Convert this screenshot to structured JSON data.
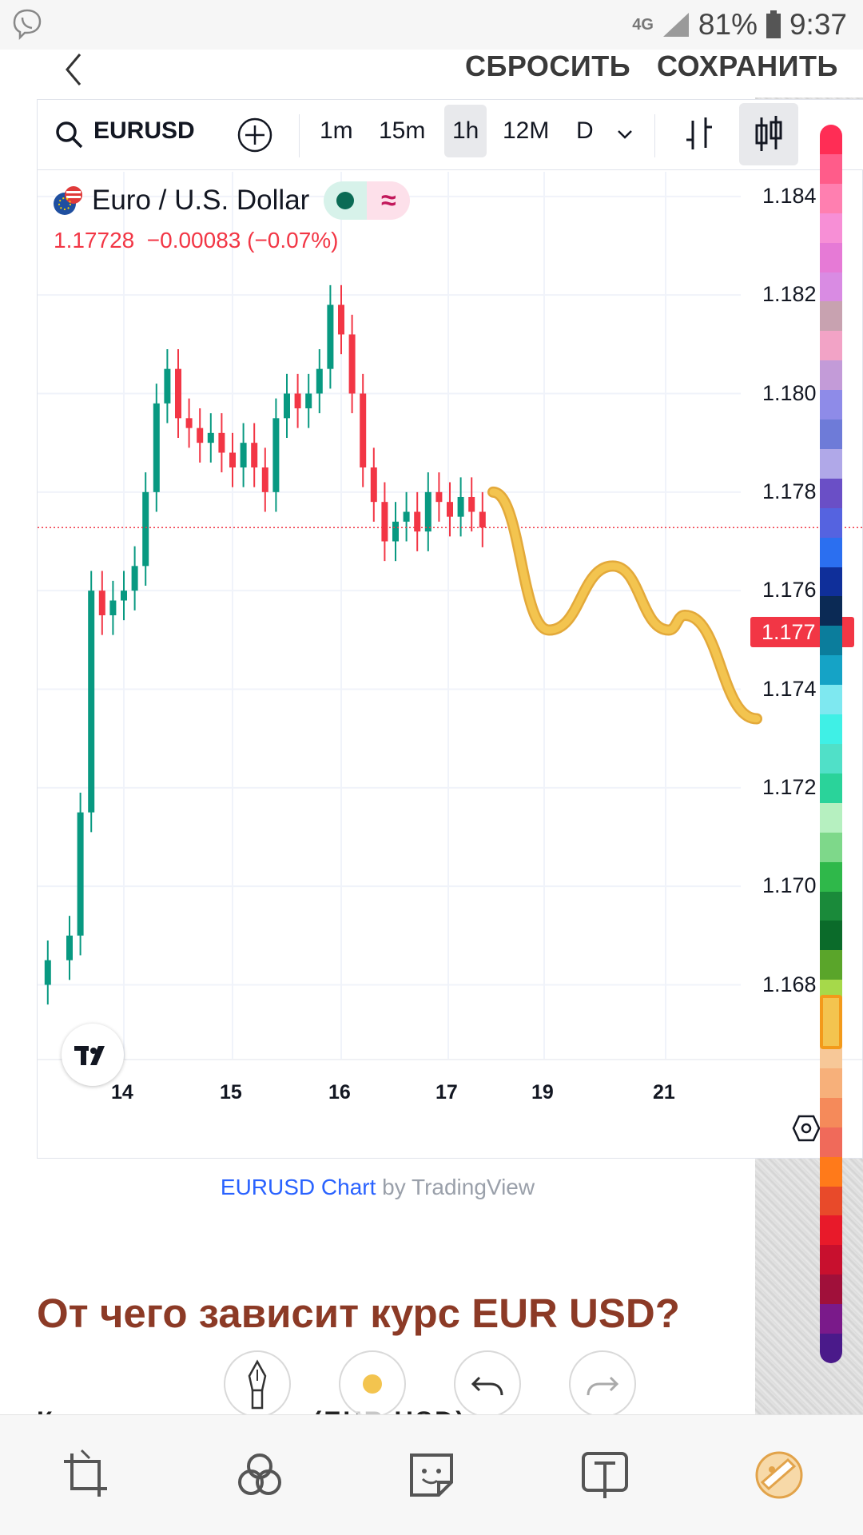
{
  "status_bar": {
    "network": "4G",
    "battery": "81%",
    "time": "9:37",
    "left_icon": "viber-icon"
  },
  "editor_header": {
    "back_icon": "back-arrow-icon",
    "reset_label": "СБРОСИТЬ",
    "save_label": "СОХРАНИТЬ"
  },
  "chart_toolbar": {
    "symbol": "EURUSD",
    "search_icon": "search-icon",
    "add_icon": "plus-circle-icon",
    "intervals": [
      "1m",
      "15m",
      "1h",
      "12M",
      "D"
    ],
    "selected_interval": "1h",
    "dropdown_icon": "chevron-down-icon",
    "bar_style_icon": "bars-icon",
    "candle_style_icon": "candles-icon"
  },
  "legend": {
    "name": "Euro / U.S. Dollar",
    "values": "1.17728  −0.00083 (−0.07%)",
    "status_icons": [
      "market-dot-icon",
      "approx-icon"
    ]
  },
  "chart_data": {
    "type": "line",
    "title": "",
    "symbol": "EURUSD",
    "timeframe": "1h",
    "xlabel": "",
    "ylabel": "",
    "x_ticks": [
      "14",
      "15",
      "16",
      "17",
      "19",
      "21"
    ],
    "y_ticks": [
      "1.184",
      "1.182",
      "1.180",
      "1.178",
      "1.176",
      "1.174",
      "1.172",
      "1.170",
      "1.168"
    ],
    "ylim": [
      1.1665,
      1.1845
    ],
    "last_price": 1.17728,
    "last_price_label": "1.177",
    "grid": true,
    "series": [
      {
        "x": [
          13.3,
          13.5,
          13.6,
          13.7,
          13.8,
          13.9,
          14.0,
          14.1,
          14.2,
          14.3,
          14.4,
          14.5,
          14.6,
          14.7,
          14.8,
          14.9,
          15.0,
          15.1,
          15.2,
          15.3,
          15.4,
          15.5,
          15.6,
          15.7,
          15.8,
          15.9,
          16.0,
          16.1,
          16.2,
          16.3,
          16.4,
          16.5,
          16.6,
          16.7,
          16.8,
          16.9,
          17.0,
          17.1,
          17.2,
          17.3
        ],
        "y": [
          1.1685,
          1.169,
          1.1715,
          1.176,
          1.1755,
          1.1758,
          1.176,
          1.1765,
          1.178,
          1.1798,
          1.1805,
          1.1795,
          1.1793,
          1.179,
          1.1792,
          1.1788,
          1.1785,
          1.179,
          1.1785,
          1.178,
          1.1795,
          1.18,
          1.1797,
          1.18,
          1.1805,
          1.1818,
          1.1812,
          1.18,
          1.1785,
          1.1778,
          1.177,
          1.1774,
          1.1776,
          1.1772,
          1.178,
          1.1778,
          1.1775,
          1.1779,
          1.1776,
          1.17728
        ]
      }
    ],
    "annotation": {
      "type": "freehand-path",
      "color": "#f3c44f",
      "y_points": [
        1.178,
        1.1752,
        1.1765,
        1.1752,
        1.1755,
        1.1734
      ]
    }
  },
  "chart_caption": {
    "link": "EURUSD Chart",
    "by": " by TradingView"
  },
  "article": {
    "heading": "От чего зависит курс EUR USD?",
    "paragraph_start": "Курс евро доллар (EUR USD) зависит не от"
  },
  "draw_tools": [
    "pen-icon",
    "color-dot-icon",
    "undo-icon",
    "redo-icon"
  ],
  "bottom_bar": [
    "crop-icon",
    "filters-icon",
    "sticker-icon",
    "text-icon",
    "draw-icon"
  ],
  "palette": {
    "selected_color": "#f3c44f"
  }
}
